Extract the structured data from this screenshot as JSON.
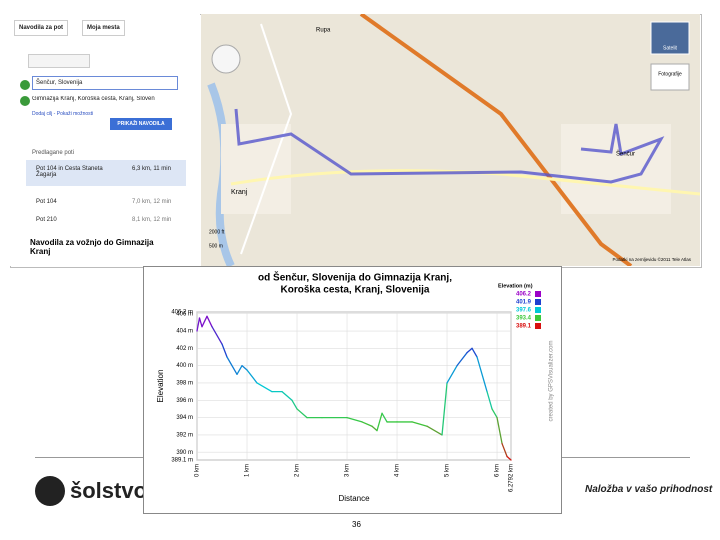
{
  "sidebar": {
    "tabs": [
      "Navodila za pot",
      "Moja mesta"
    ],
    "from": "Šenčur, Slovenija",
    "to": "Gimnazija Kranj, Koroška cesta, Kranj, Sloven",
    "add_link": "Dodaj cilj - Pokaži možnosti",
    "button": "PRIKAŽI NAVODILA",
    "routes_title": "Predlagane poti",
    "routes": [
      {
        "name": "Pot 104 in Cesta Staneta Žagarja",
        "info": "6,3 km, 11 min"
      },
      {
        "name": "Pot 104",
        "info": "7,0 km, 12 min"
      },
      {
        "name": "Pot 210",
        "info": "8,1 km, 12 min"
      }
    ],
    "directions": "Navodila za vožnjo do Gimnazija Kranj"
  },
  "map": {
    "controls": [
      "Satelit",
      "Fotografije"
    ],
    "places": [
      "Rupa",
      "Kranj",
      "Šenčur"
    ],
    "scale": [
      "2000 ft",
      "500 m"
    ],
    "attribution": "Podatki na zemljevidu ©2011 Tele Atlas"
  },
  "elevation_chart": {
    "title_lines": [
      "od Šenčur, Slovenija do Gimnazija Kranj,",
      "Koroška cesta, Kranj, Slovenija"
    ],
    "x_label": "Distance",
    "y_label": "Elevation",
    "legend_title": "Elevation (m)",
    "watermark": "created by GPSVisualizer.com",
    "legend": [
      {
        "value": 406.2,
        "color": "#9b00c8"
      },
      {
        "value": 401.9,
        "color": "#1f3fd0"
      },
      {
        "value": 397.6,
        "color": "#00c8d8"
      },
      {
        "value": 393.4,
        "color": "#3cc83c"
      },
      {
        "value": 389.1,
        "color": "#d81010"
      }
    ],
    "xlim": [
      0,
      6.2792
    ],
    "ylim": [
      389.1,
      406.2
    ],
    "xticks": [
      {
        "value": 0,
        "label": "0 km"
      },
      {
        "value": 1,
        "label": "1 km"
      },
      {
        "value": 2,
        "label": "2 km"
      },
      {
        "value": 3,
        "label": "3 km"
      },
      {
        "value": 4,
        "label": "4 km"
      },
      {
        "value": 5,
        "label": "5 km"
      },
      {
        "value": 6,
        "label": "6 km"
      },
      {
        "value": 6.2792,
        "label": "6.2792 km"
      }
    ],
    "yticks": [
      {
        "value": 406.2,
        "label": "406.2 m"
      },
      {
        "value": 406,
        "label": "406 m"
      },
      {
        "value": 404,
        "label": "404 m"
      },
      {
        "value": 402,
        "label": "402 m"
      },
      {
        "value": 400,
        "label": "400 m"
      },
      {
        "value": 398,
        "label": "398 m"
      },
      {
        "value": 396,
        "label": "396 m"
      },
      {
        "value": 394,
        "label": "394 m"
      },
      {
        "value": 392,
        "label": "392 m"
      },
      {
        "value": 390,
        "label": "390 m"
      },
      {
        "value": 389.1,
        "label": "389.1 m"
      }
    ],
    "x": [
      0,
      0.05,
      0.1,
      0.2,
      0.3,
      0.5,
      0.6,
      0.8,
      0.9,
      1.0,
      1.2,
      1.5,
      1.7,
      1.9,
      2.0,
      2.2,
      2.5,
      3.0,
      3.3,
      3.5,
      3.6,
      3.7,
      3.8,
      4.0,
      4.3,
      4.6,
      4.9,
      5.0,
      5.2,
      5.4,
      5.5,
      5.6,
      5.8,
      5.9,
      6.0,
      6.1,
      6.2,
      6.2792
    ],
    "values": [
      404,
      405.5,
      404.5,
      405.7,
      404.5,
      402.5,
      401,
      399,
      400,
      399.5,
      398,
      397,
      397,
      396,
      395,
      394,
      394,
      394,
      393.5,
      393,
      392.5,
      394.5,
      393.5,
      393.5,
      393.5,
      393,
      392,
      398,
      400,
      401.5,
      402,
      401,
      397,
      395,
      394,
      391,
      389.5,
      389.1
    ]
  },
  "footer": {
    "logo": "šolstvo",
    "slogan": "Naložba v vašo prihodnost",
    "page": "36"
  }
}
